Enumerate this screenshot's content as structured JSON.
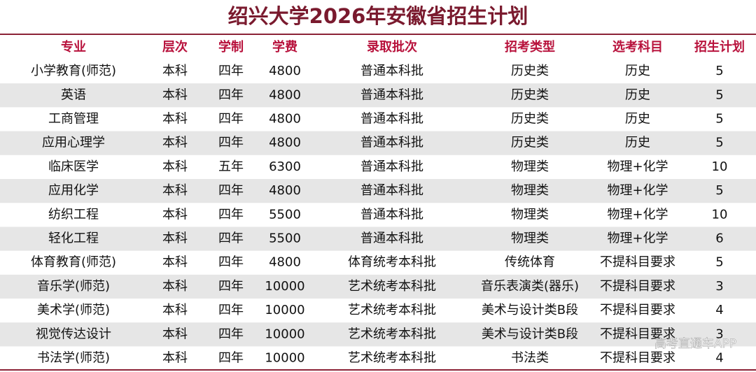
{
  "header": {
    "title": "绍兴大学2026年安徽省招生计划"
  },
  "table": {
    "columns": [
      "专业",
      "层次",
      "学制",
      "学费",
      "录取批次",
      "招考类型",
      "选考科目",
      "招生计划"
    ],
    "rows": [
      [
        "小学教育(师范)",
        "本科",
        "四年",
        "4800",
        "普通本科批",
        "历史类",
        "历史",
        "5"
      ],
      [
        "英语",
        "本科",
        "四年",
        "4800",
        "普通本科批",
        "历史类",
        "历史",
        "5"
      ],
      [
        "工商管理",
        "本科",
        "四年",
        "4800",
        "普通本科批",
        "历史类",
        "历史",
        "5"
      ],
      [
        "应用心理学",
        "本科",
        "四年",
        "4800",
        "普通本科批",
        "历史类",
        "历史",
        "5"
      ],
      [
        "临床医学",
        "本科",
        "五年",
        "6300",
        "普通本科批",
        "物理类",
        "物理+化学",
        "10"
      ],
      [
        "应用化学",
        "本科",
        "四年",
        "4800",
        "普通本科批",
        "物理类",
        "物理+化学",
        "5"
      ],
      [
        "纺织工程",
        "本科",
        "四年",
        "5500",
        "普通本科批",
        "物理类",
        "物理+化学",
        "10"
      ],
      [
        "轻化工程",
        "本科",
        "四年",
        "5500",
        "普通本科批",
        "物理类",
        "物理+化学",
        "6"
      ],
      [
        "体育教育(师范)",
        "本科",
        "四年",
        "4800",
        "体育统考本科批",
        "传统体育",
        "不提科目要求",
        "5"
      ],
      [
        "音乐学(师范)",
        "本科",
        "四年",
        "10000",
        "艺术统考本科批",
        "音乐表演类(器乐)",
        "不提科目要求",
        "3"
      ],
      [
        "美术学(师范)",
        "本科",
        "四年",
        "10000",
        "艺术统考本科批",
        "美术与设计类B段",
        "不提科目要求",
        "4"
      ],
      [
        "视觉传达设计",
        "本科",
        "四年",
        "10000",
        "艺术统考本科批",
        "美术与设计类B段",
        "不提科目要求",
        "3"
      ],
      [
        "书法学(师范)",
        "本科",
        "四年",
        "10000",
        "艺术统考本科批",
        "书法类",
        "不提科目要求",
        "4"
      ]
    ]
  },
  "watermark": "高考直通车APP"
}
